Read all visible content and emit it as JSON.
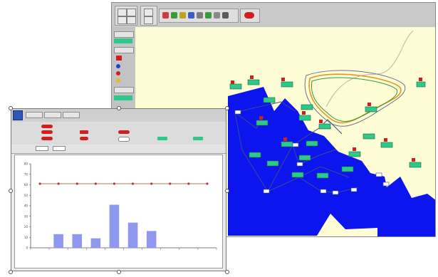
{
  "map_window": {
    "colors": {
      "land": "#fefdd5",
      "water": "#0d15ee",
      "node": "#2ec98a",
      "alarm": "#d21e1e",
      "link": "#2a3a7a"
    },
    "toolbar_icons": [
      "select-icon",
      "zoom-icon",
      "pan-icon",
      "link-icon",
      "node-icon",
      "alarm-icon",
      "refresh-icon",
      "print-icon",
      "settings-icon",
      "help-icon",
      "close-icon"
    ]
  },
  "chart_window": {
    "title": "",
    "info": "",
    "chart_title": "",
    "chart_data": {
      "type": "bar",
      "series": [
        {
          "type": "bar",
          "color": "#8f98ee",
          "values": [
            0,
            13,
            13,
            9,
            41,
            24,
            16,
            0,
            0,
            0
          ]
        },
        {
          "type": "line",
          "color": "#b43a3a",
          "values": [
            61,
            61,
            61,
            61,
            61,
            61,
            61,
            61,
            61,
            61
          ]
        }
      ],
      "categories": [
        "",
        "",
        "",
        "",
        "",
        "",
        "",
        "",
        "",
        ""
      ],
      "y_ticks": [
        0,
        10,
        20,
        30,
        40,
        50,
        60,
        70,
        80
      ],
      "ylim": [
        0,
        80
      ],
      "xlabel": "",
      "ylabel": "",
      "grid": false
    }
  }
}
